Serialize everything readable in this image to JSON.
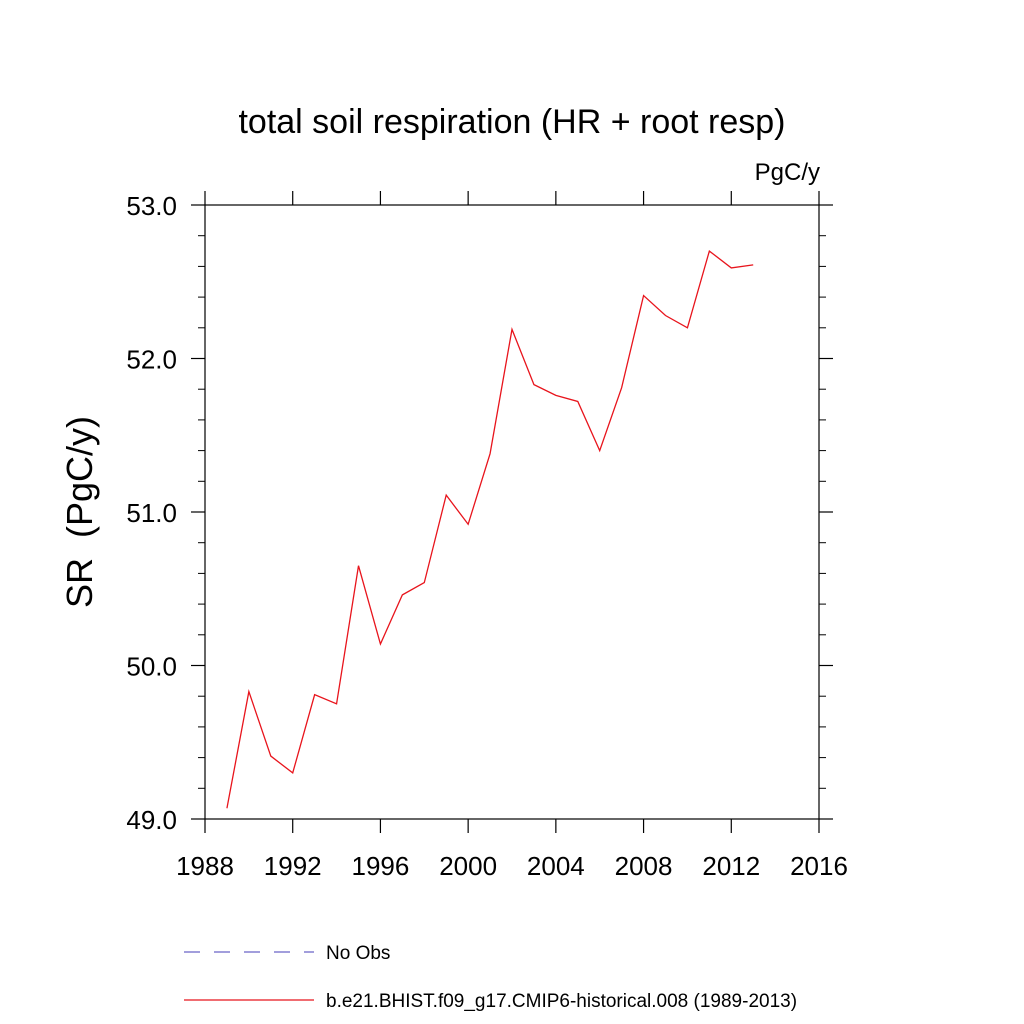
{
  "chart_data": {
    "type": "line",
    "title": "total soil respiration (HR + root resp)",
    "units_label": "PgC/y",
    "ylabel": "SR  (PgC/y)",
    "xlabel": "",
    "xlim": [
      1988,
      2016
    ],
    "ylim": [
      49.0,
      53.0
    ],
    "x_ticks": [
      1988,
      1992,
      1996,
      2000,
      2004,
      2008,
      2012,
      2016
    ],
    "x_tick_labels": [
      "1988",
      "1992",
      "1996",
      "2000",
      "2004",
      "2008",
      "2012",
      "2016"
    ],
    "y_ticks": [
      49.0,
      50.0,
      51.0,
      52.0,
      53.0
    ],
    "y_tick_labels": [
      "49.0",
      "50.0",
      "51.0",
      "52.0",
      "53.0"
    ],
    "grid": false,
    "series": [
      {
        "name": "b.e21.BHIST.f09_g17.CMIP6-historical.008 (1989-2013)",
        "color": "#e8141c",
        "style": "solid",
        "x": [
          1989,
          1990,
          1991,
          1992,
          1993,
          1994,
          1995,
          1996,
          1997,
          1998,
          1999,
          2000,
          2001,
          2002,
          2003,
          2004,
          2005,
          2006,
          2007,
          2008,
          2009,
          2010,
          2011,
          2012,
          2013
        ],
        "values": [
          49.07,
          49.83,
          49.41,
          49.3,
          49.81,
          49.75,
          50.65,
          50.14,
          50.46,
          50.54,
          51.11,
          50.92,
          51.38,
          52.19,
          51.83,
          51.76,
          51.72,
          51.4,
          51.81,
          52.41,
          52.28,
          52.2,
          52.7,
          52.59,
          52.61
        ]
      }
    ],
    "legend": [
      {
        "label": "No Obs",
        "color": "#6a64c8",
        "style": "dashed"
      },
      {
        "label": "b.e21.BHIST.f09_g17.CMIP6-historical.008 (1989-2013)",
        "color": "#e8141c",
        "style": "solid"
      }
    ],
    "legend_position": "bottom"
  }
}
